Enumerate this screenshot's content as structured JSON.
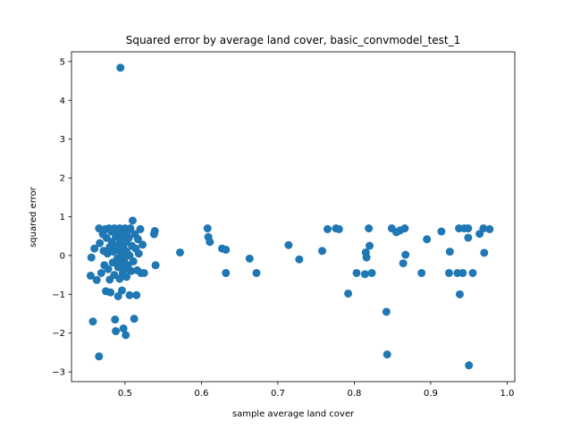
{
  "chart_data": {
    "type": "scatter",
    "title": "Squared error by average land cover, basic_convmodel_test_1",
    "xlabel": "sample average land cover",
    "ylabel": "squared error",
    "xlim": [
      0.43,
      1.01
    ],
    "ylim": [
      -3.25,
      5.25
    ],
    "xticks": [
      0.5,
      0.6,
      0.7,
      0.8,
      0.9,
      1.0
    ],
    "xtick_labels": [
      "0.5",
      "0.6",
      "0.7",
      "0.8",
      "0.9",
      "1.0"
    ],
    "yticks": [
      -3,
      -2,
      -1,
      0,
      1,
      2,
      3,
      4,
      5
    ],
    "ytick_labels": [
      "−3",
      "−2",
      "−1",
      "0",
      "1",
      "2",
      "3",
      "4",
      "5"
    ],
    "grid": false,
    "legend": "none",
    "marker_color": "#1f77b4",
    "points": [
      [
        0.494,
        4.84
      ],
      [
        0.456,
        -0.05
      ],
      [
        0.455,
        -0.52
      ],
      [
        0.46,
        0.18
      ],
      [
        0.463,
        -0.63
      ],
      [
        0.458,
        -1.7
      ],
      [
        0.466,
        -2.6
      ],
      [
        0.466,
        0.7
      ],
      [
        0.467,
        0.32
      ],
      [
        0.469,
        -0.45
      ],
      [
        0.471,
        0.55
      ],
      [
        0.472,
        0.12
      ],
      [
        0.473,
        -0.25
      ],
      [
        0.474,
        0.68
      ],
      [
        0.475,
        -0.92
      ],
      [
        0.476,
        0.45
      ],
      [
        0.477,
        0.05
      ],
      [
        0.478,
        -0.35
      ],
      [
        0.479,
        0.7
      ],
      [
        0.48,
        0.22
      ],
      [
        0.48,
        -0.62
      ],
      [
        0.481,
        -0.95
      ],
      [
        0.482,
        0.62
      ],
      [
        0.483,
        0.35
      ],
      [
        0.484,
        -0.18
      ],
      [
        0.485,
        0.1
      ],
      [
        0.486,
        0.7
      ],
      [
        0.486,
        -0.5
      ],
      [
        0.487,
        -1.65
      ],
      [
        0.488,
        0.48
      ],
      [
        0.488,
        -1.95
      ],
      [
        0.489,
        0.25
      ],
      [
        0.49,
        -0.08
      ],
      [
        0.49,
        0.65
      ],
      [
        0.491,
        -0.3
      ],
      [
        0.491,
        -1.05
      ],
      [
        0.492,
        0.55
      ],
      [
        0.492,
        0.15
      ],
      [
        0.493,
        -0.6
      ],
      [
        0.493,
        0.7
      ],
      [
        0.494,
        0.4
      ],
      [
        0.494,
        -0.2
      ],
      [
        0.495,
        0.05
      ],
      [
        0.495,
        0.6
      ],
      [
        0.496,
        -0.9
      ],
      [
        0.496,
        0.3
      ],
      [
        0.497,
        -0.45
      ],
      [
        0.497,
        0.68
      ],
      [
        0.498,
        0.2
      ],
      [
        0.498,
        -1.88
      ],
      [
        0.499,
        0.5
      ],
      [
        0.499,
        -0.1
      ],
      [
        0.5,
        0.7
      ],
      [
        0.5,
        -0.35
      ],
      [
        0.501,
        -2.05
      ],
      [
        0.501,
        0.35
      ],
      [
        0.502,
        0.1
      ],
      [
        0.502,
        -0.55
      ],
      [
        0.503,
        0.62
      ],
      [
        0.504,
        -0.25
      ],
      [
        0.505,
        0.45
      ],
      [
        0.506,
        0.0
      ],
      [
        0.506,
        -1.02
      ],
      [
        0.507,
        0.7
      ],
      [
        0.508,
        -0.4
      ],
      [
        0.509,
        0.25
      ],
      [
        0.51,
        0.9
      ],
      [
        0.511,
        -0.15
      ],
      [
        0.512,
        -1.63
      ],
      [
        0.513,
        0.55
      ],
      [
        0.514,
        0.18
      ],
      [
        0.515,
        -1.02
      ],
      [
        0.516,
        -0.38
      ],
      [
        0.517,
        0.42
      ],
      [
        0.518,
        0.05
      ],
      [
        0.52,
        0.68
      ],
      [
        0.521,
        -0.45
      ],
      [
        0.523,
        0.28
      ],
      [
        0.525,
        -0.45
      ],
      [
        0.538,
        0.55
      ],
      [
        0.539,
        0.63
      ],
      [
        0.54,
        -0.25
      ],
      [
        0.572,
        0.08
      ],
      [
        0.608,
        0.7
      ],
      [
        0.609,
        0.48
      ],
      [
        0.611,
        0.35
      ],
      [
        0.627,
        0.18
      ],
      [
        0.632,
        0.15
      ],
      [
        0.632,
        -0.45
      ],
      [
        0.663,
        -0.08
      ],
      [
        0.672,
        -0.45
      ],
      [
        0.714,
        0.27
      ],
      [
        0.728,
        -0.1
      ],
      [
        0.758,
        0.12
      ],
      [
        0.765,
        0.68
      ],
      [
        0.776,
        0.7
      ],
      [
        0.78,
        0.68
      ],
      [
        0.792,
        -0.98
      ],
      [
        0.803,
        -0.45
      ],
      [
        0.814,
        -0.48
      ],
      [
        0.815,
        0.08
      ],
      [
        0.816,
        -0.05
      ],
      [
        0.819,
        0.7
      ],
      [
        0.82,
        0.25
      ],
      [
        0.823,
        -0.45
      ],
      [
        0.842,
        -1.45
      ],
      [
        0.843,
        -2.55
      ],
      [
        0.849,
        0.7
      ],
      [
        0.855,
        0.6
      ],
      [
        0.86,
        0.65
      ],
      [
        0.864,
        -0.2
      ],
      [
        0.866,
        0.7
      ],
      [
        0.867,
        0.02
      ],
      [
        0.888,
        -0.45
      ],
      [
        0.895,
        0.42
      ],
      [
        0.914,
        0.62
      ],
      [
        0.924,
        -0.45
      ],
      [
        0.925,
        0.1
      ],
      [
        0.935,
        -0.45
      ],
      [
        0.937,
        0.7
      ],
      [
        0.938,
        -1.0
      ],
      [
        0.942,
        -0.45
      ],
      [
        0.944,
        0.7
      ],
      [
        0.949,
        0.7
      ],
      [
        0.949,
        0.46
      ],
      [
        0.95,
        -2.83
      ],
      [
        0.955,
        -0.45
      ],
      [
        0.964,
        0.56
      ],
      [
        0.969,
        0.7
      ],
      [
        0.97,
        0.07
      ],
      [
        0.977,
        0.68
      ]
    ]
  }
}
